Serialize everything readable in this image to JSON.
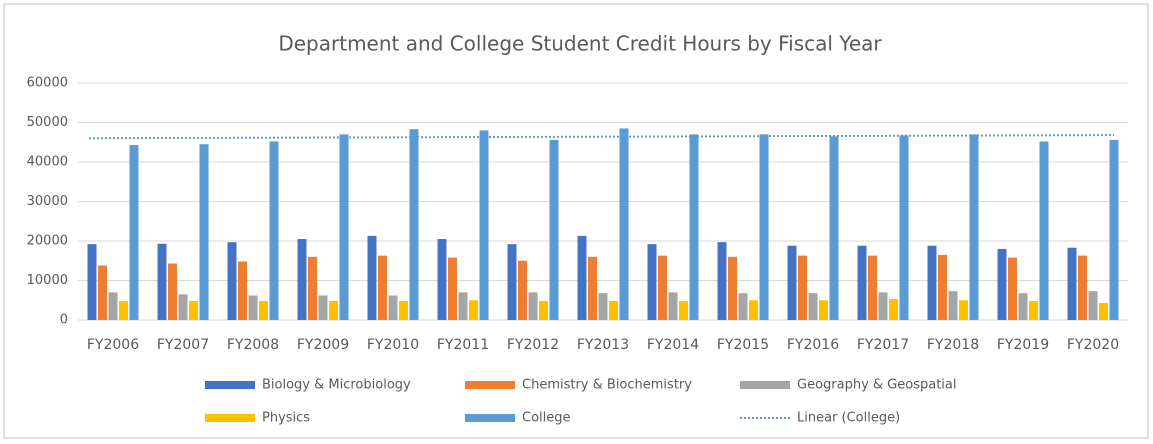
{
  "chart_data": {
    "type": "bar",
    "title": "Department and College Student Credit Hours by Fiscal Year",
    "categories": [
      "FY2006",
      "FY2007",
      "FY2008",
      "FY2009",
      "FY2010",
      "FY2011",
      "FY2012",
      "FY2013",
      "FY2014",
      "FY2015",
      "FY2016",
      "FY2017",
      "FY2018",
      "FY2019",
      "FY2020"
    ],
    "series": [
      {
        "name": "Biology & Microbiology",
        "color": "#4472c4",
        "values": [
          19200,
          19300,
          19700,
          20500,
          21300,
          20500,
          19200,
          21300,
          19200,
          19700,
          18800,
          18800,
          18800,
          18000,
          18300
        ]
      },
      {
        "name": "Chemistry & Biochemistry",
        "color": "#ed7d31",
        "values": [
          13800,
          14300,
          14800,
          16000,
          16300,
          15800,
          15000,
          16000,
          16300,
          16000,
          16300,
          16300,
          16500,
          15800,
          16300
        ]
      },
      {
        "name": "Geography & Geospatial",
        "color": "#a5a5a5",
        "values": [
          7000,
          6500,
          6200,
          6200,
          6200,
          7000,
          7000,
          6800,
          7000,
          6800,
          6800,
          7000,
          7300,
          6800,
          7300
        ]
      },
      {
        "name": "Physics",
        "color": "#ffc000",
        "values": [
          4800,
          4800,
          4800,
          4800,
          4800,
          5000,
          4800,
          4800,
          4800,
          5000,
          5000,
          5300,
          5000,
          4800,
          4300
        ]
      },
      {
        "name": "College",
        "color": "#5b9bd5",
        "values": [
          44300,
          44500,
          45200,
          47000,
          48300,
          48000,
          45600,
          48500,
          47000,
          47000,
          46500,
          46700,
          47000,
          45200,
          45600
        ]
      }
    ],
    "trendline": {
      "name": "Linear (College)",
      "series": 4,
      "color": "#5b9bd5"
    },
    "ylim": [
      0,
      60000
    ],
    "yticks": [
      0,
      10000,
      20000,
      30000,
      40000,
      50000,
      60000
    ],
    "grid": true
  }
}
